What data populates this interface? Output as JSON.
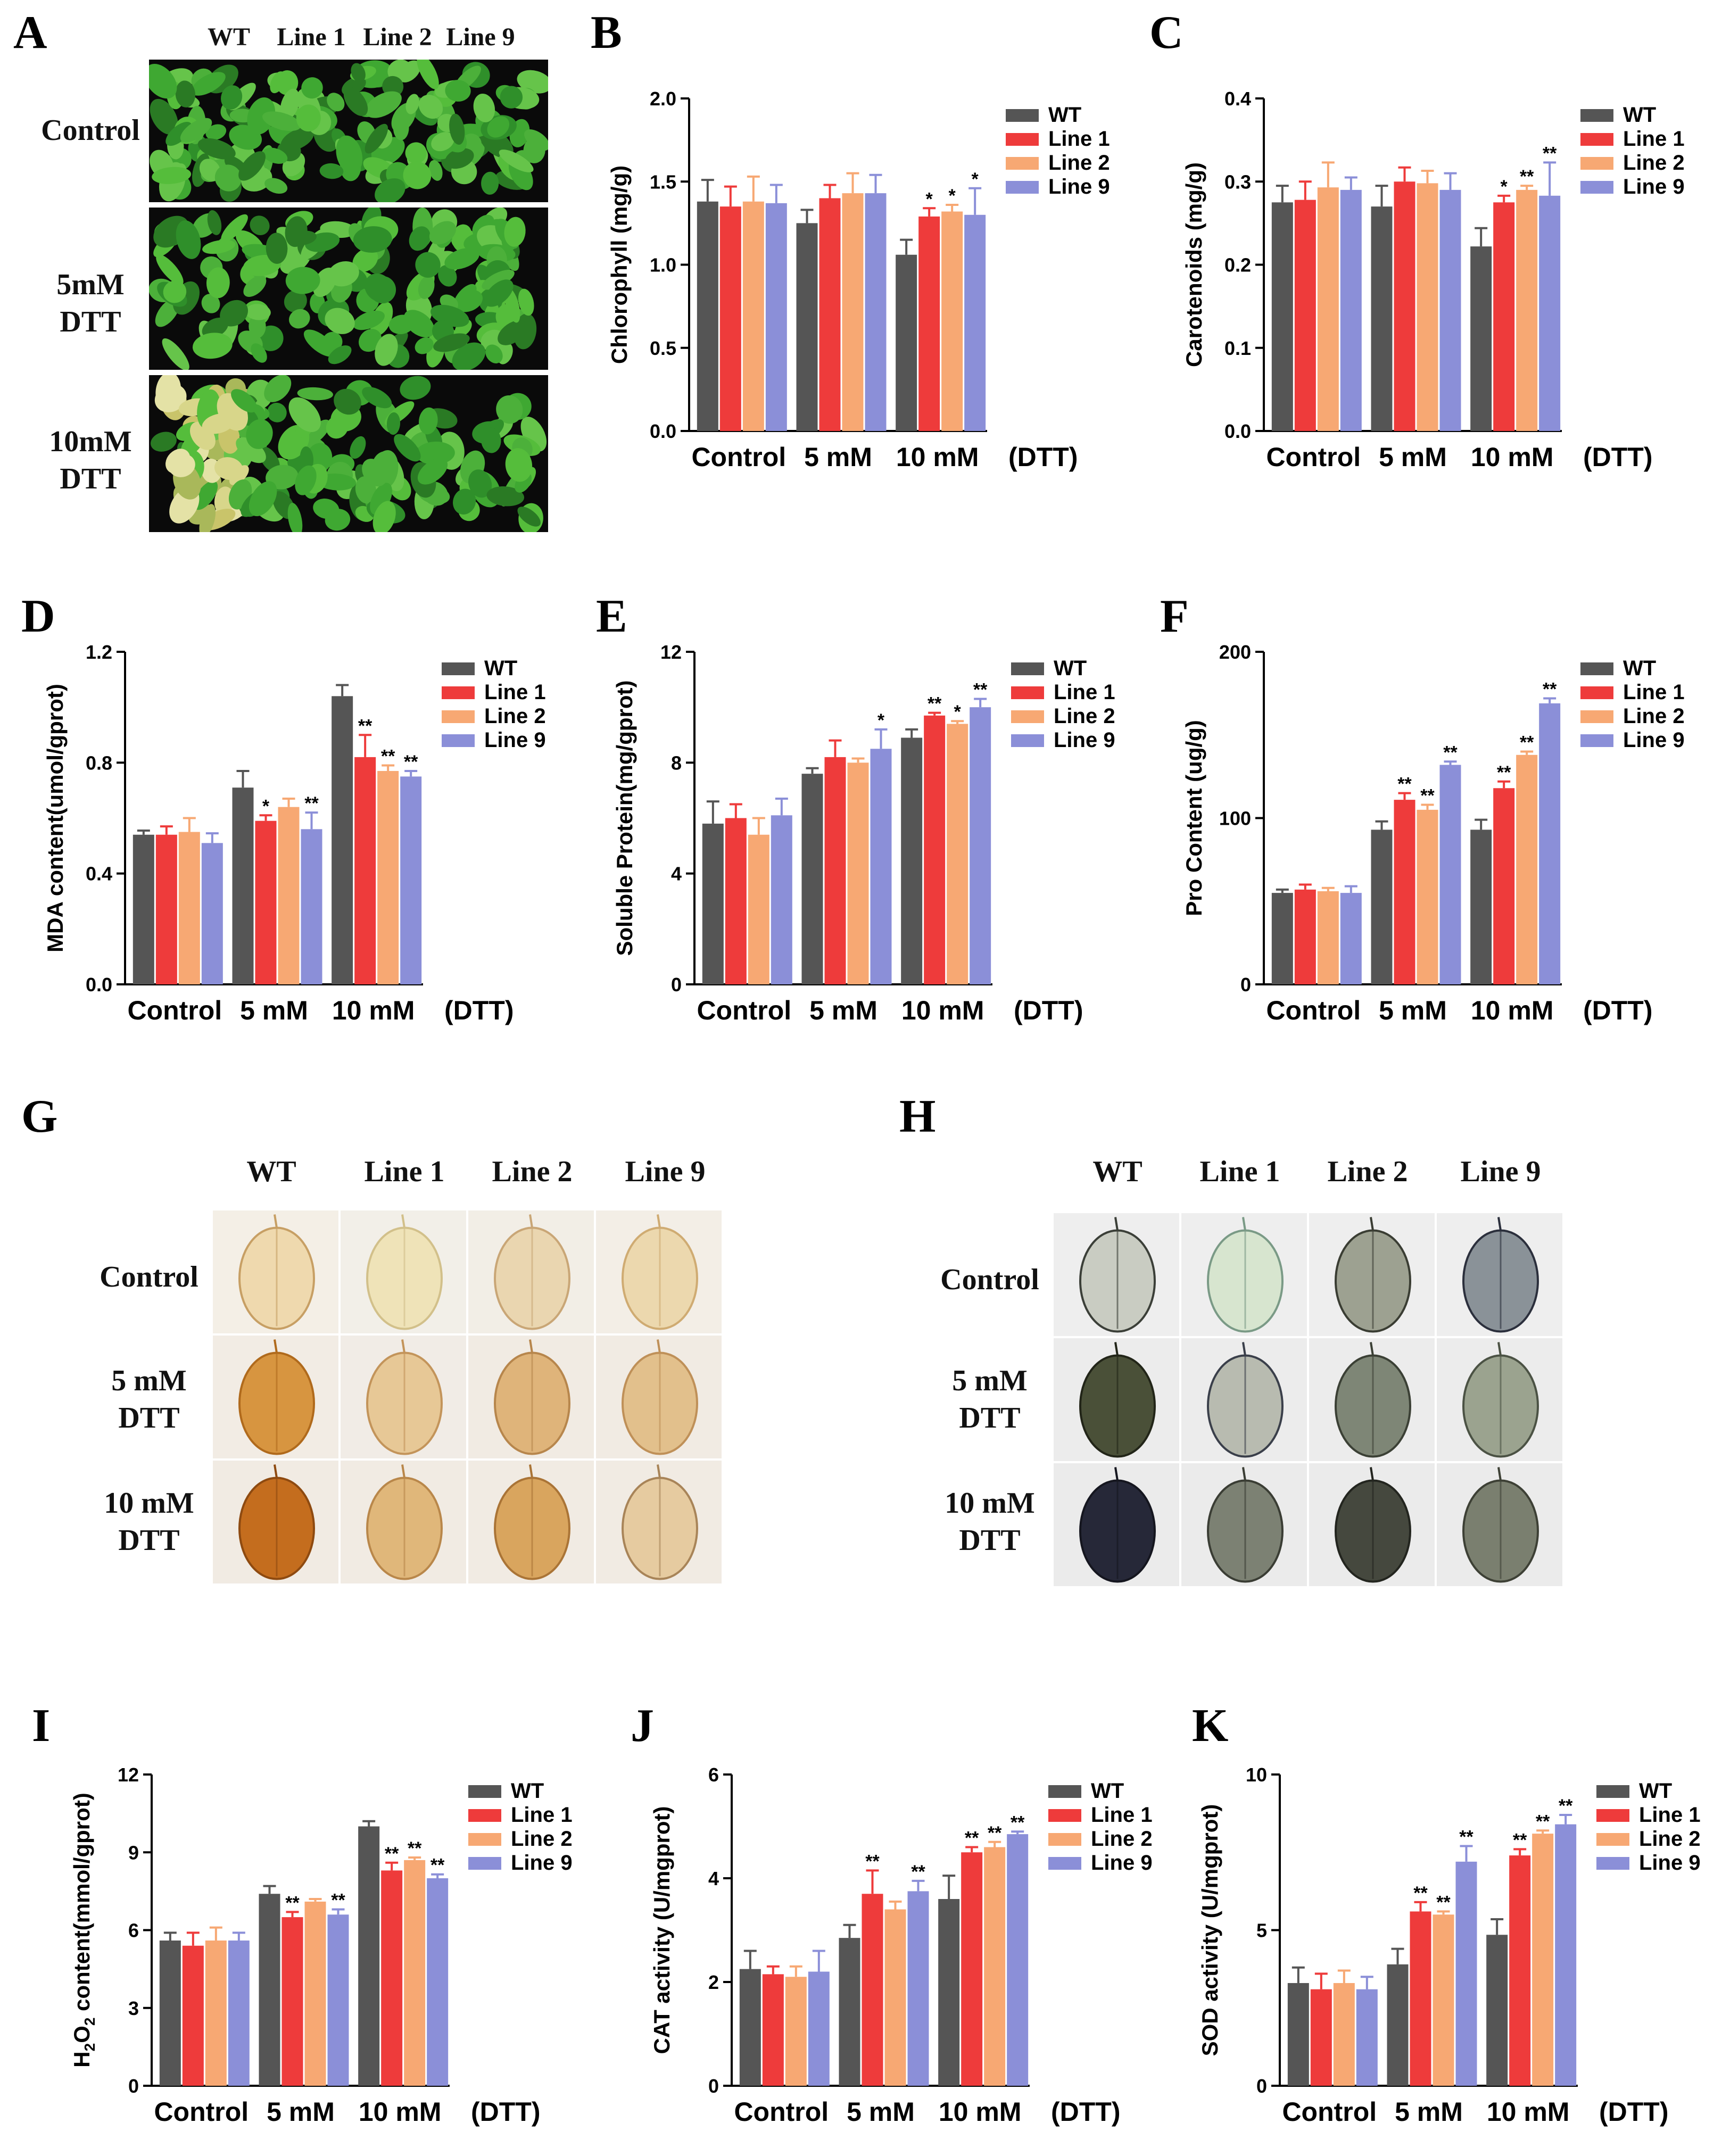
{
  "colors": {
    "WT": "#555555",
    "Line 1": "#ee3b3b",
    "Line 2": "#f7a873",
    "Line 9": "#8b8fd8"
  },
  "panels": {
    "A": {
      "label": "A",
      "columns": [
        "WT",
        "Line 1",
        "Line 2",
        "Line 9"
      ],
      "rows": [
        {
          "label": "Control"
        },
        {
          "label": "5mM\nDTT"
        },
        {
          "label": "10mM\nDTT"
        }
      ]
    },
    "G": {
      "label": "G",
      "columns": [
        "WT",
        "Line 1",
        "Line 2",
        "Line 9"
      ],
      "rows": [
        {
          "label": "Control"
        },
        {
          "label": "5 mM\nDTT"
        },
        {
          "label": "10 mM\nDTT"
        }
      ]
    },
    "H": {
      "label": "H",
      "columns": [
        "WT",
        "Line 1",
        "Line 2",
        "Line 9"
      ],
      "rows": [
        {
          "label": "Control"
        },
        {
          "label": "5 mM\nDTT"
        },
        {
          "label": "10 mM\nDTT"
        }
      ]
    }
  },
  "chart_data": [
    {
      "panel": "B",
      "type": "bar",
      "ylabel": "Chlorophyll (mg/g)",
      "categories": [
        "Control",
        "5 mM",
        "10 mM"
      ],
      "x_suffix": "(DTT)",
      "ylim": [
        0,
        2.0
      ],
      "ticks": [
        0.0,
        0.5,
        1.0,
        1.5,
        2.0
      ],
      "tick_labels": [
        "0.0",
        "0.5",
        "1.0",
        "1.5",
        "2.0"
      ],
      "legend": [
        "WT",
        "Line 1",
        "Line 2",
        "Line 9"
      ],
      "series": [
        {
          "name": "WT",
          "values": [
            1.38,
            1.25,
            1.06
          ],
          "err": [
            0.13,
            0.08,
            0.09
          ],
          "sig": [
            "",
            "",
            ""
          ]
        },
        {
          "name": "Line 1",
          "values": [
            1.35,
            1.4,
            1.29
          ],
          "err": [
            0.12,
            0.08,
            0.05
          ],
          "sig": [
            "",
            "",
            "*"
          ]
        },
        {
          "name": "Line 2",
          "values": [
            1.38,
            1.43,
            1.32
          ],
          "err": [
            0.15,
            0.12,
            0.04
          ],
          "sig": [
            "",
            "",
            "*"
          ]
        },
        {
          "name": "Line 9",
          "values": [
            1.37,
            1.43,
            1.3
          ],
          "err": [
            0.11,
            0.11,
            0.16
          ],
          "sig": [
            "",
            "",
            "*"
          ]
        }
      ]
    },
    {
      "panel": "C",
      "type": "bar",
      "ylabel": "Carotenoids (mg/g)",
      "categories": [
        "Control",
        "5 mM",
        "10 mM"
      ],
      "x_suffix": "(DTT)",
      "ylim": [
        0,
        0.4
      ],
      "ticks": [
        0.0,
        0.1,
        0.2,
        0.3,
        0.4
      ],
      "tick_labels": [
        "0.0",
        "0.1",
        "0.2",
        "0.3",
        "0.4"
      ],
      "legend": [
        "WT",
        "Line 1",
        "Line 2",
        "Line 9"
      ],
      "series": [
        {
          "name": "WT",
          "values": [
            0.275,
            0.27,
            0.222
          ],
          "err": [
            0.02,
            0.025,
            0.022
          ],
          "sig": [
            "",
            "",
            ""
          ]
        },
        {
          "name": "Line 1",
          "values": [
            0.278,
            0.3,
            0.275
          ],
          "err": [
            0.022,
            0.017,
            0.008
          ],
          "sig": [
            "",
            "",
            "*"
          ]
        },
        {
          "name": "Line 2",
          "values": [
            0.293,
            0.298,
            0.29
          ],
          "err": [
            0.03,
            0.015,
            0.005
          ],
          "sig": [
            "",
            "",
            "**"
          ]
        },
        {
          "name": "Line 9",
          "values": [
            0.29,
            0.29,
            0.283
          ],
          "err": [
            0.015,
            0.02,
            0.04
          ],
          "sig": [
            "",
            "",
            "**"
          ]
        }
      ]
    },
    {
      "panel": "D",
      "type": "bar",
      "ylabel": "MDA content(umol/gprot)",
      "categories": [
        "Control",
        "5 mM",
        "10 mM"
      ],
      "x_suffix": "(DTT)",
      "ylim": [
        0,
        1.2
      ],
      "ticks": [
        0.0,
        0.4,
        0.8,
        1.2
      ],
      "tick_labels": [
        "0.0",
        "0.4",
        "0.8",
        "1.2"
      ],
      "legend": [
        "WT",
        "Line 1",
        "Line 2",
        "Line 9"
      ],
      "series": [
        {
          "name": "WT",
          "values": [
            0.54,
            0.71,
            1.04
          ],
          "err": [
            0.015,
            0.06,
            0.04
          ],
          "sig": [
            "",
            "",
            ""
          ]
        },
        {
          "name": "Line 1",
          "values": [
            0.54,
            0.59,
            0.82
          ],
          "err": [
            0.03,
            0.02,
            0.08
          ],
          "sig": [
            "",
            "*",
            "**"
          ]
        },
        {
          "name": "Line 2",
          "values": [
            0.55,
            0.64,
            0.77
          ],
          "err": [
            0.05,
            0.03,
            0.02
          ],
          "sig": [
            "",
            "",
            "**"
          ]
        },
        {
          "name": "Line 9",
          "values": [
            0.51,
            0.56,
            0.75
          ],
          "err": [
            0.035,
            0.06,
            0.02
          ],
          "sig": [
            "",
            "**",
            "**"
          ]
        }
      ]
    },
    {
      "panel": "E",
      "type": "bar",
      "ylabel": "Soluble Protein(mg/gprot)",
      "categories": [
        "Control",
        "5 mM",
        "10 mM"
      ],
      "x_suffix": "(DTT)",
      "ylim": [
        0,
        12
      ],
      "ticks": [
        0,
        4,
        8,
        12
      ],
      "tick_labels": [
        "0",
        "4",
        "8",
        "12"
      ],
      "legend": [
        "WT",
        "Line 1",
        "Line 2",
        "Line 9"
      ],
      "series": [
        {
          "name": "WT",
          "values": [
            5.8,
            7.6,
            8.9
          ],
          "err": [
            0.8,
            0.2,
            0.3
          ],
          "sig": [
            "",
            "",
            ""
          ]
        },
        {
          "name": "Line 1",
          "values": [
            6.0,
            8.2,
            9.7
          ],
          "err": [
            0.5,
            0.6,
            0.1
          ],
          "sig": [
            "",
            "",
            "**"
          ]
        },
        {
          "name": "Line 2",
          "values": [
            5.4,
            8.0,
            9.4
          ],
          "err": [
            0.6,
            0.15,
            0.1
          ],
          "sig": [
            "",
            "",
            "*"
          ]
        },
        {
          "name": "Line 9",
          "values": [
            6.1,
            8.5,
            10.0
          ],
          "err": [
            0.6,
            0.7,
            0.3
          ],
          "sig": [
            "",
            "*",
            "**"
          ]
        }
      ]
    },
    {
      "panel": "F",
      "type": "bar",
      "ylabel": "Pro Content (ug/g)",
      "categories": [
        "Control",
        "5 mM",
        "10 mM"
      ],
      "x_suffix": "(DTT)",
      "ylim": [
        0,
        200
      ],
      "ticks": [
        0,
        100,
        200
      ],
      "tick_labels": [
        "0",
        "100",
        "200"
      ],
      "legend": [
        "WT",
        "Line 1",
        "Line 2",
        "Line 9"
      ],
      "series": [
        {
          "name": "WT",
          "values": [
            55,
            93,
            93
          ],
          "err": [
            2,
            5,
            6
          ],
          "sig": [
            "",
            "",
            ""
          ]
        },
        {
          "name": "Line 1",
          "values": [
            57,
            111,
            118
          ],
          "err": [
            3,
            4,
            4
          ],
          "sig": [
            "",
            "**",
            "**"
          ]
        },
        {
          "name": "Line 2",
          "values": [
            56,
            105,
            138
          ],
          "err": [
            2,
            3,
            2
          ],
          "sig": [
            "",
            "**",
            "**"
          ]
        },
        {
          "name": "Line 9",
          "values": [
            55,
            132,
            169
          ],
          "err": [
            4,
            2,
            3
          ],
          "sig": [
            "",
            "**",
            "**"
          ]
        }
      ]
    },
    {
      "panel": "I",
      "type": "bar",
      "ylabel": "H2O2 content(mmol/gprot)",
      "ylabel_parts": [
        "H",
        "2",
        "O",
        "2",
        " content(mmol/gprot)"
      ],
      "categories": [
        "Control",
        "5 mM",
        "10 mM"
      ],
      "x_suffix": "(DTT)",
      "ylim": [
        0,
        12
      ],
      "ticks": [
        0,
        3,
        6,
        9,
        12
      ],
      "tick_labels": [
        "0",
        "3",
        "6",
        "9",
        "12"
      ],
      "legend": [
        "WT",
        "Line 1",
        "Line 2",
        "Line 9"
      ],
      "series": [
        {
          "name": "WT",
          "values": [
            5.6,
            7.4,
            10.0
          ],
          "err": [
            0.3,
            0.3,
            0.2
          ],
          "sig": [
            "",
            "",
            ""
          ]
        },
        {
          "name": "Line 1",
          "values": [
            5.4,
            6.5,
            8.3
          ],
          "err": [
            0.5,
            0.2,
            0.3
          ],
          "sig": [
            "",
            "**",
            "**"
          ]
        },
        {
          "name": "Line 2",
          "values": [
            5.6,
            7.1,
            8.7
          ],
          "err": [
            0.5,
            0.1,
            0.1
          ],
          "sig": [
            "",
            "",
            "**"
          ]
        },
        {
          "name": "Line 9",
          "values": [
            5.6,
            6.6,
            8.0
          ],
          "err": [
            0.3,
            0.2,
            0.15
          ],
          "sig": [
            "",
            "**",
            "**"
          ]
        }
      ]
    },
    {
      "panel": "J",
      "type": "bar",
      "ylabel": "CAT activity (U/mgprot)",
      "categories": [
        "Control",
        "5 mM",
        "10 mM"
      ],
      "x_suffix": "(DTT)",
      "ylim": [
        0,
        6
      ],
      "ticks": [
        0,
        2,
        4,
        6
      ],
      "tick_labels": [
        "0",
        "2",
        "4",
        "6"
      ],
      "legend": [
        "WT",
        "Line 1",
        "Line 2",
        "Line 9"
      ],
      "series": [
        {
          "name": "WT",
          "values": [
            2.25,
            2.85,
            3.6
          ],
          "err": [
            0.35,
            0.25,
            0.45
          ],
          "sig": [
            "",
            "",
            ""
          ]
        },
        {
          "name": "Line 1",
          "values": [
            2.15,
            3.7,
            4.5
          ],
          "err": [
            0.15,
            0.45,
            0.1
          ],
          "sig": [
            "",
            "**",
            "**"
          ]
        },
        {
          "name": "Line 2",
          "values": [
            2.1,
            3.4,
            4.6
          ],
          "err": [
            0.2,
            0.15,
            0.1
          ],
          "sig": [
            "",
            "",
            "**"
          ]
        },
        {
          "name": "Line 9",
          "values": [
            2.2,
            3.75,
            4.85
          ],
          "err": [
            0.4,
            0.2,
            0.05
          ],
          "sig": [
            "",
            "**",
            "**"
          ]
        }
      ]
    },
    {
      "panel": "K",
      "type": "bar",
      "ylabel": "SOD activity (U/mgprot)",
      "categories": [
        "Control",
        "5 mM",
        "10 mM"
      ],
      "x_suffix": "(DTT)",
      "ylim": [
        0,
        10
      ],
      "ticks": [
        0,
        5,
        10
      ],
      "tick_labels": [
        "0",
        "5",
        "10"
      ],
      "legend": [
        "WT",
        "Line 1",
        "Line 2",
        "Line 9"
      ],
      "series": [
        {
          "name": "WT",
          "values": [
            3.3,
            3.9,
            4.85
          ],
          "err": [
            0.5,
            0.5,
            0.5
          ],
          "sig": [
            "",
            "",
            ""
          ]
        },
        {
          "name": "Line 1",
          "values": [
            3.1,
            5.6,
            7.4
          ],
          "err": [
            0.5,
            0.3,
            0.2
          ],
          "sig": [
            "",
            "**",
            "**"
          ]
        },
        {
          "name": "Line 2",
          "values": [
            3.3,
            5.5,
            8.1
          ],
          "err": [
            0.4,
            0.1,
            0.1
          ],
          "sig": [
            "",
            "**",
            "**"
          ]
        },
        {
          "name": "Line 9",
          "values": [
            3.1,
            7.2,
            8.4
          ],
          "err": [
            0.4,
            0.5,
            0.3
          ],
          "sig": [
            "",
            "**",
            "**"
          ]
        }
      ]
    }
  ]
}
